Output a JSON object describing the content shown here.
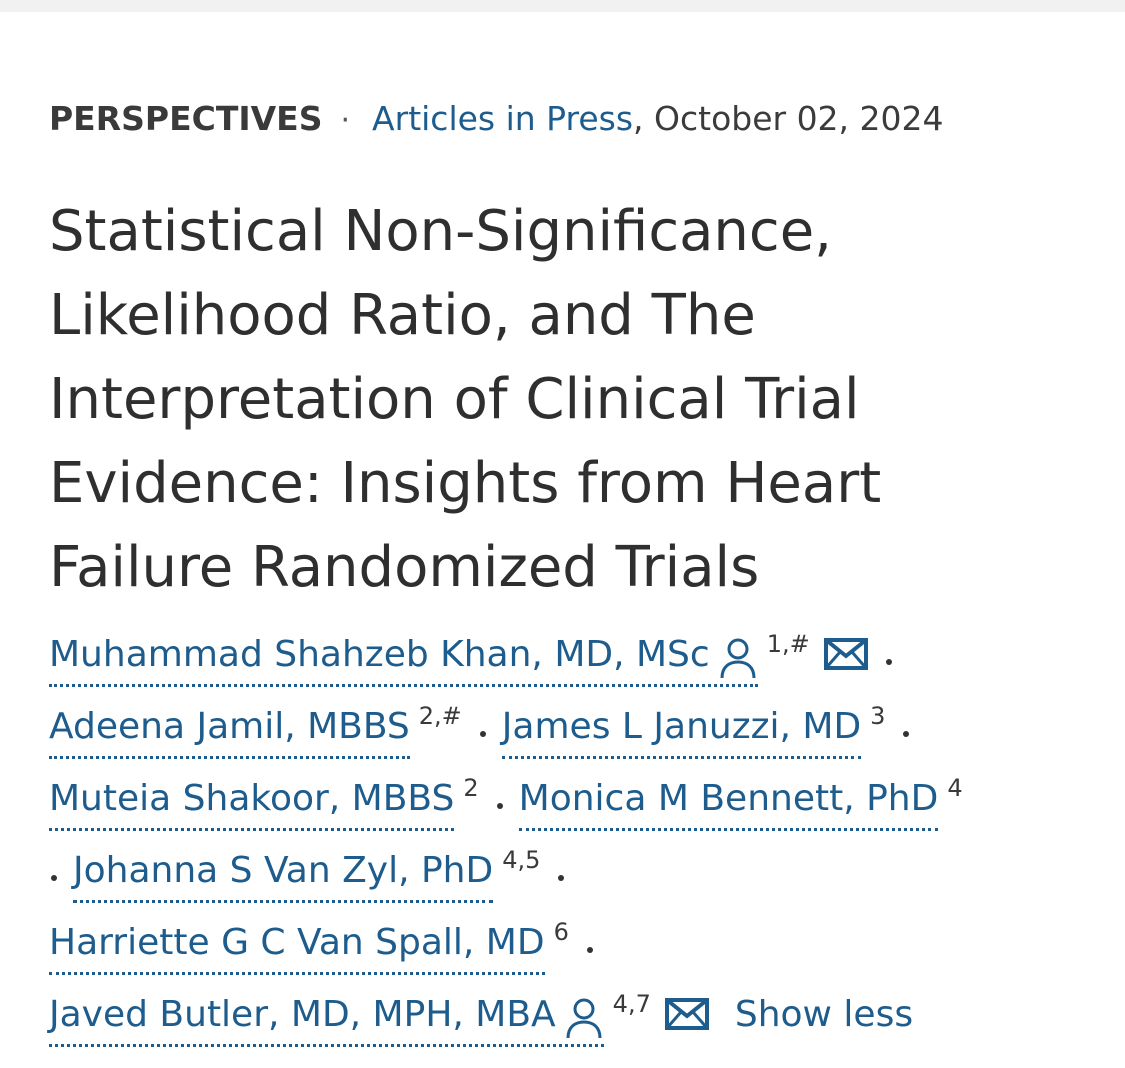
{
  "meta": {
    "article_type": "PERSPECTIVES",
    "separator": "·",
    "issue_link": "Articles in Press",
    "date": ", October 02, 2024"
  },
  "title": {
    "lines": [
      "Statistical Non-Significance,",
      "Likelihood Ratio, and The",
      "Interpretation of Clinical Trial",
      "Evidence: Insights from Heart",
      "Failure Randomized Trials"
    ]
  },
  "authors": [
    {
      "name": "Muhammad Shahzeb Khan, MD, MSc",
      "affiliations": "1,#",
      "corresponding": true
    },
    {
      "name": "Adeena Jamil, MBBS",
      "affiliations": "2,#",
      "corresponding": false
    },
    {
      "name": "James L Januzzi, MD",
      "affiliations": "3",
      "corresponding": false
    },
    {
      "name": "Muteia Shakoor, MBBS",
      "affiliations": "2",
      "corresponding": false
    },
    {
      "name": "Monica M Bennett, PhD",
      "affiliations": "4",
      "corresponding": false
    },
    {
      "name": "Johanna S Van Zyl, PhD",
      "affiliations": "4,5",
      "corresponding": false
    },
    {
      "name": "Harriette G C Van Spall, MD",
      "affiliations": "6",
      "corresponding": false
    },
    {
      "name": "Javed Butler, MD, MPH, MBA",
      "affiliations": "4,7",
      "corresponding": true
    }
  ],
  "show_less_label": "Show less",
  "colors": {
    "link": "#1d5c8c",
    "text": "#333333",
    "topbar": "#f1f1f1"
  },
  "icons": {
    "corresponding": "person-icon",
    "email": "mail-icon"
  }
}
